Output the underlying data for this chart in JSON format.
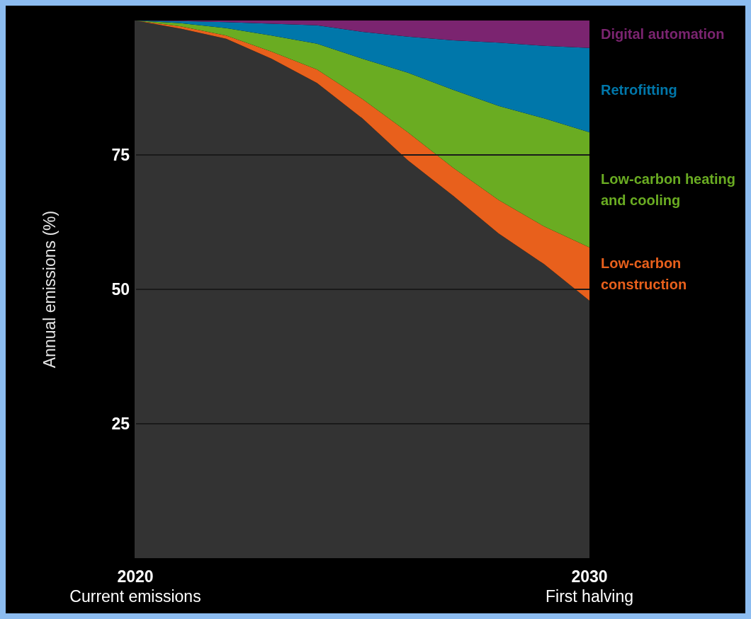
{
  "chart_data": {
    "type": "area",
    "stacked": true,
    "ylabel": "Annual emissions (%)",
    "x": [
      2020,
      2021,
      2022,
      2023,
      2024,
      2025,
      2026,
      2027,
      2028,
      2029,
      2030
    ],
    "xlim": [
      2020,
      2030
    ],
    "xticks": [
      {
        "value": 2020,
        "label": "2020\nCurrent emissions"
      },
      {
        "value": 2030,
        "label": "2030\nFirst halving"
      }
    ],
    "ylim": [
      0,
      100
    ],
    "yticks": [
      25,
      50,
      75
    ],
    "grid": "y",
    "series": [
      {
        "color": "#333333",
        "values": [
          100,
          98.5,
          96.6,
          92.9,
          88.4,
          81.8,
          74,
          67.4,
          60.4,
          54.7,
          47.9
        ]
      },
      {
        "name": "Low-carbon construction",
        "color": "#e8601c",
        "values": [
          0,
          0.4,
          0.6,
          1.3,
          2.5,
          3.6,
          5.2,
          5.2,
          6.2,
          7.0,
          9.9
        ]
      },
      {
        "name": "Low-carbon heating and cooling",
        "color": "#6aac22",
        "values": [
          0,
          0.6,
          1.4,
          3.0,
          4.8,
          7.5,
          11.1,
          14.5,
          17.5,
          20.1,
          21.4
        ]
      },
      {
        "name": "Retrofitting",
        "color": "#0077aa",
        "values": [
          0,
          0.4,
          1.1,
          2.2,
          3.4,
          5.0,
          6.7,
          9.2,
          11.8,
          13.5,
          15.7
        ]
      },
      {
        "name": "Digital automation",
        "color": "#7b2470",
        "values": [
          0,
          0.1,
          0.3,
          0.6,
          0.9,
          2.1,
          3.0,
          3.7,
          4.1,
          4.7,
          5.1
        ]
      }
    ]
  }
}
